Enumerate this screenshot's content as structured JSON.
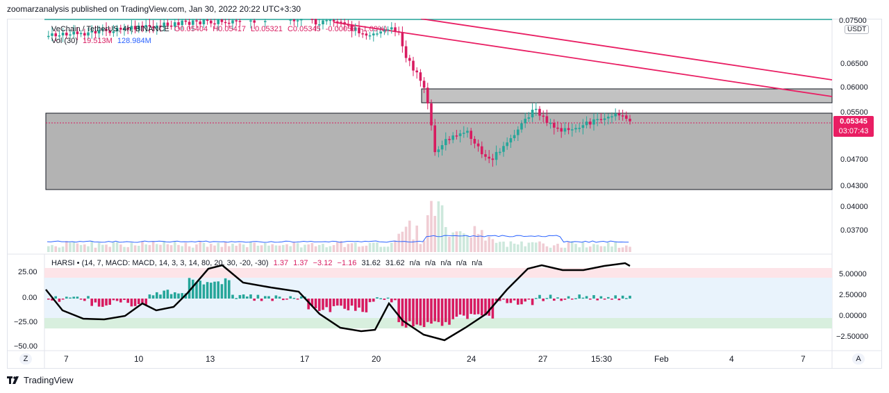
{
  "header": {
    "publisher_line": "zoomarzanalysis published on TradingView.com, Jan 30, 2022 20:22 UTC+3:30"
  },
  "legend": {
    "symbol": "VeChain / TetherUS, 4h, BINANCE",
    "open": "O0.05404",
    "high": "H0.05417",
    "low": "L0.05321",
    "close": "C0.05345",
    "change": "-0.00059 (-1.09%)",
    "vol_label": "Vol (30)",
    "vol_value": "19.513M",
    "vol_ma": "128.984M"
  },
  "price_axis": {
    "currency": "USDT",
    "ticks": [
      "0.07500",
      "0.06500",
      "0.06000",
      "0.05500",
      "0.04700",
      "0.04300",
      "0.04000",
      "0.03700"
    ],
    "current_price": "0.05345",
    "countdown": "03:07:43"
  },
  "indicator": {
    "legend": "HARSI • (14, 7, MACD: MACD, 14, 3, 3, 14, 80, 20, 30, -20, -30)",
    "values": [
      "1.37",
      "1.37",
      "−3.12",
      "−1.16",
      "31.62",
      "31.62",
      "n/a",
      "n/a",
      "n/a",
      "n/a",
      "n/a"
    ],
    "left_ticks": [
      "25.00",
      "0.00",
      "−25.00",
      "−50.00"
    ],
    "right_ticks": [
      "5.00000",
      "2.50000",
      "0.00000",
      "−2.50000"
    ]
  },
  "time_axis": {
    "labels": [
      "7",
      "10",
      "13",
      "17",
      "20",
      "24",
      "27",
      "15:30",
      "Feb",
      "4",
      "7"
    ],
    "left_button": "Z",
    "right_button": "A"
  },
  "colors": {
    "up": "#26a69a",
    "down": "#d81b60",
    "line": "#e91e63",
    "zone": "#b0b0b0",
    "vol_up": "#cde8dc",
    "vol_down": "#f0cdd4"
  },
  "footer": {
    "brand": "TradingView"
  }
}
